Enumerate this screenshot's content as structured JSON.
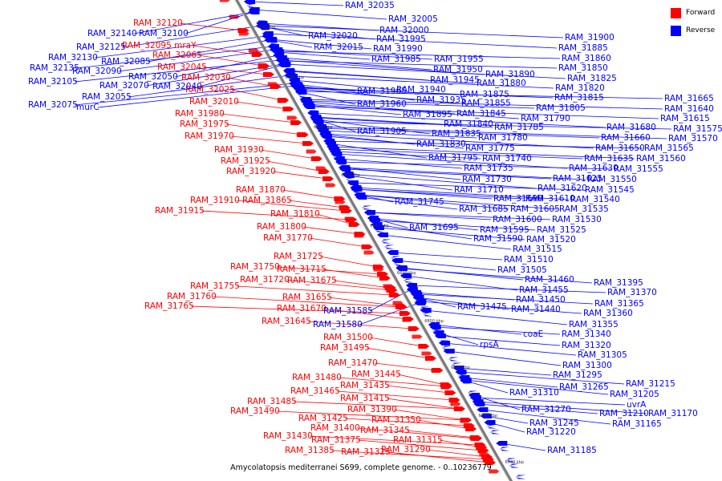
{
  "legend": {
    "forward_label": "Forward",
    "reverse_label": "Reverse",
    "forward_color": "#ff0000",
    "reverse_color": "#0000ff"
  },
  "caption": "Amycolatopsis mediterranei S699, complete genome. - 0..10236779",
  "ticks": [
    "6920 kbp",
    "6900 kbp",
    "6880 kbp",
    "6860 kbp",
    "6840 kbp",
    "6820 kbp",
    "6800 kbp",
    "6780 kbp",
    "6760 kbp",
    "6740 kbp"
  ],
  "forward_genes": [
    "RAM_32120",
    "RAM_32095 mraY",
    "RAM_32065",
    "RAM_32045",
    "RAM_32030",
    "RAM_32025",
    "RAM_32010",
    "RAM_31980",
    "RAM_31975",
    "RAM_31970",
    "RAM_31930",
    "RAM_31925",
    "RAM_31920",
    "RAM_31870",
    "RAM_31910",
    "RAM_31865",
    "RAM_31915",
    "RAM_31810",
    "RAM_31800",
    "RAM_31770",
    "RAM_31725",
    "RAM_31750",
    "RAM_31715",
    "RAM_31720",
    "RAM_31675",
    "RAM_31755",
    "RAM_31760",
    "RAM_31765",
    "RAM_31655",
    "RAM_31670",
    "RAM_31645",
    "RAM_31500",
    "RAM_31495",
    "RAM_31470",
    "RAM_31480",
    "RAM_31445",
    "RAM_31435",
    "RAM_31465",
    "RAM_31415",
    "RAM_31485",
    "RAM_31490",
    "RAM_31390",
    "RAM_31425",
    "RAM_31350",
    "RAM_31400",
    "RAM_31345",
    "RAM_31430",
    "RAM_31375",
    "RAM_31315",
    "RAM_31385",
    "RAM_31325",
    "RAM_31290"
  ],
  "reverse_genes": [
    "RAM_32035",
    "RAM_32005",
    "RAM_32140",
    "RAM_32100",
    "RAM_32000",
    "RAM_32020",
    "RAM_31995",
    "RAM_32125",
    "RAM_32015",
    "RAM_31990",
    "RAM_32130",
    "RAM_32085",
    "RAM_31985",
    "RAM_32135",
    "RAM_32090",
    "RAM_32105",
    "RAM_32070",
    "RAM_32050",
    "RAM_32040",
    "RAM_32055",
    "RAM_32075",
    "murC",
    "RAM_31900",
    "RAM_31885",
    "RAM_31860",
    "RAM_31955",
    "RAM_31950",
    "RAM_31890",
    "RAM_31850",
    "RAM_31945",
    "RAM_31880",
    "RAM_31825",
    "RAM_31965",
    "RAM_31940",
    "RAM_31820",
    "RAM_31935",
    "RAM_31875",
    "RAM_31815",
    "RAM_31960",
    "RAM_31855",
    "RAM_31805",
    "RAM_31895",
    "RAM_31845",
    "RAM_31790",
    "RAM_31840",
    "RAM_31785",
    "RAM_31905",
    "RAM_31835",
    "RAM_31780",
    "RAM_31830",
    "RAM_31775",
    "RAM_31795",
    "RAM_31740",
    "RAM_31735",
    "RAM_31730",
    "RAM_31710",
    "RAM_31745",
    "RAM_31690",
    "RAM_31685",
    "RAM_31605",
    "RAM_31600",
    "RAM_31695",
    "RAM_31595",
    "RAM_31590",
    "RAM_31665",
    "RAM_31640",
    "RAM_31615",
    "RAM_31680",
    "RAM_31575",
    "RAM_31660",
    "RAM_31570",
    "RAM_31650",
    "RAM_31565",
    "RAM_31635",
    "RAM_31560",
    "RAM_31630",
    "RAM_31555",
    "RAM_31625",
    "RAM_31550",
    "RAM_31620",
    "RAM_31545",
    "RAM_31610",
    "RAM_31540",
    "RAM_31535",
    "RAM_31530",
    "RAM_31525",
    "RAM_31520",
    "RAM_31515",
    "RAM_31510",
    "RAM_31505",
    "RAM_31460",
    "RAM_31455",
    "RAM_31450",
    "RAM_31475",
    "RAM_31440",
    "RAM_31585",
    "RAM_31580",
    "coaE",
    "rpsA",
    "RAM_31395",
    "RAM_31370",
    "RAM_31365",
    "RAM_31360",
    "RAM_31355",
    "RAM_31340",
    "RAM_31320",
    "RAM_31305",
    "RAM_31300",
    "RAM_31295",
    "RAM_31265",
    "RAM_31310",
    "RAM_31270",
    "RAM_31245",
    "RAM_31220",
    "RAM_31215",
    "RAM_31205",
    "uvrA",
    "RAM_31210",
    "RAM_31170",
    "RAM_31165",
    "RAM_31185"
  ]
}
